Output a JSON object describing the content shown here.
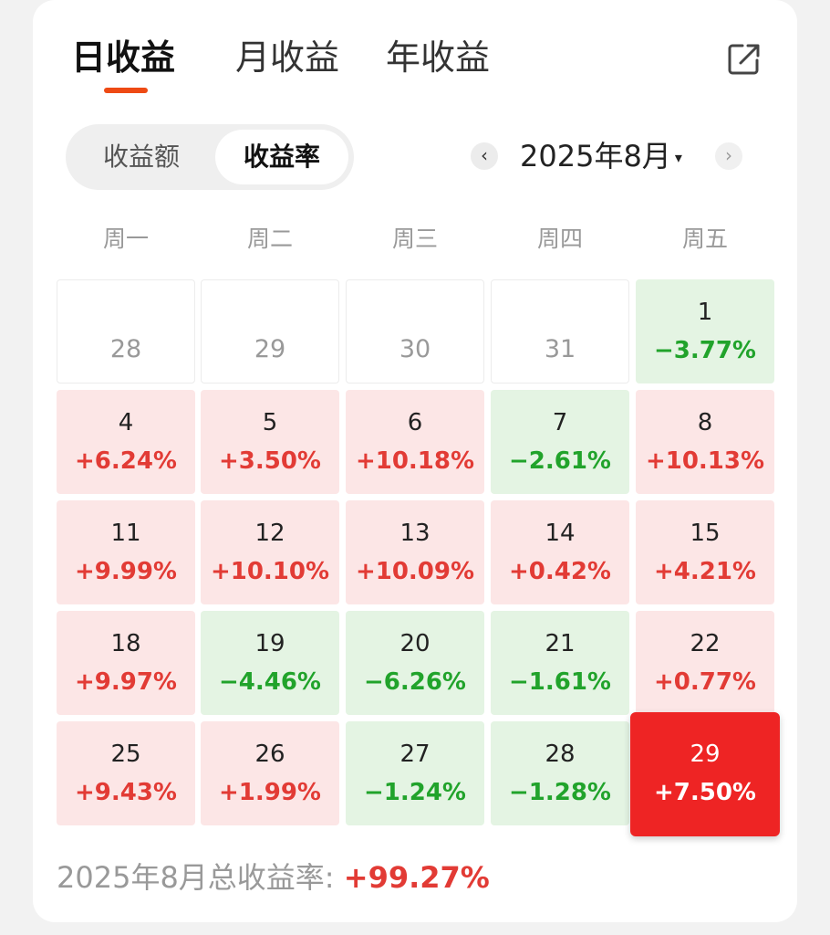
{
  "tabs": [
    {
      "label": "日收益",
      "active": true
    },
    {
      "label": "月收益",
      "active": false
    },
    {
      "label": "年收益",
      "active": false
    }
  ],
  "toggle": {
    "left_label": "收益额",
    "right_label": "收益率",
    "selected": "收益率"
  },
  "month_selector": {
    "prev": "‹",
    "label": "2025年8月",
    "caret": "▾",
    "next": "›"
  },
  "weekdays": [
    "周一",
    "周二",
    "周三",
    "周四",
    "周五"
  ],
  "calendar": [
    {
      "day": "28",
      "rate": "",
      "trend": "none"
    },
    {
      "day": "29",
      "rate": "",
      "trend": "none"
    },
    {
      "day": "30",
      "rate": "",
      "trend": "none"
    },
    {
      "day": "31",
      "rate": "",
      "trend": "none"
    },
    {
      "day": "1",
      "rate": "−3.77%",
      "trend": "down"
    },
    {
      "day": "4",
      "rate": "+6.24%",
      "trend": "up"
    },
    {
      "day": "5",
      "rate": "+3.50%",
      "trend": "up"
    },
    {
      "day": "6",
      "rate": "+10.18%",
      "trend": "up"
    },
    {
      "day": "7",
      "rate": "−2.61%",
      "trend": "down"
    },
    {
      "day": "8",
      "rate": "+10.13%",
      "trend": "up"
    },
    {
      "day": "11",
      "rate": "+9.99%",
      "trend": "up"
    },
    {
      "day": "12",
      "rate": "+10.10%",
      "trend": "up"
    },
    {
      "day": "13",
      "rate": "+10.09%",
      "trend": "up"
    },
    {
      "day": "14",
      "rate": "+0.42%",
      "trend": "up"
    },
    {
      "day": "15",
      "rate": "+4.21%",
      "trend": "up"
    },
    {
      "day": "18",
      "rate": "+9.97%",
      "trend": "up"
    },
    {
      "day": "19",
      "rate": "−4.46%",
      "trend": "down"
    },
    {
      "day": "20",
      "rate": "−6.26%",
      "trend": "down"
    },
    {
      "day": "21",
      "rate": "−1.61%",
      "trend": "down"
    },
    {
      "day": "22",
      "rate": "+0.77%",
      "trend": "up"
    },
    {
      "day": "25",
      "rate": "+9.43%",
      "trend": "up"
    },
    {
      "day": "26",
      "rate": "+1.99%",
      "trend": "up"
    },
    {
      "day": "27",
      "rate": "−1.24%",
      "trend": "down"
    },
    {
      "day": "28",
      "rate": "−1.28%",
      "trend": "down"
    },
    {
      "day": "29",
      "rate": "+7.50%",
      "trend": "up",
      "selected": true
    }
  ],
  "footer": {
    "label": "2025年8月总收益率: ",
    "value": "+99.27%"
  },
  "colors": {
    "accent": "#ee4a14",
    "up": "#e23b35",
    "down": "#21a32b",
    "selected_bg": "#ee2424"
  },
  "icons": {
    "share": "share-icon",
    "prev": "chevron-left-icon",
    "next": "chevron-right-icon",
    "dropdown": "caret-down-icon"
  }
}
